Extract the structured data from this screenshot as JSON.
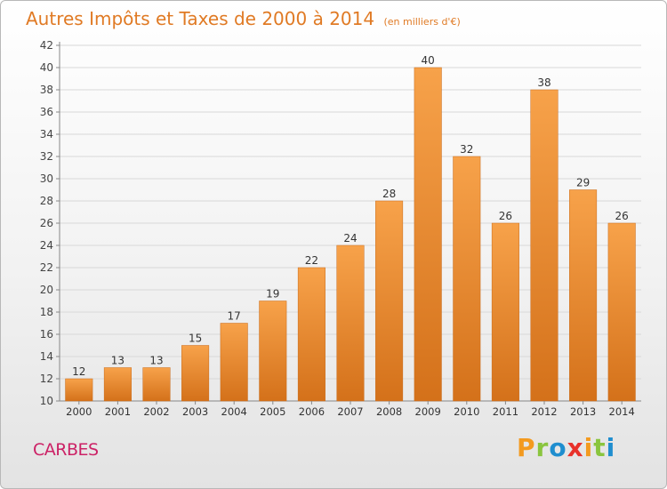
{
  "header": {
    "title": "Autres Impôts et Taxes de 2000 à 2014",
    "subtitle": "(en milliers d'€)"
  },
  "footer": {
    "place": "CARBES",
    "logo": [
      "P",
      "r",
      "o",
      "x",
      "i",
      "t",
      "i"
    ]
  },
  "colors": {
    "title": "#e07a24",
    "bar_top": "#f7a24a",
    "bar_bottom": "#d4711a",
    "place": "#cc2266",
    "logo": [
      "#f39a1f",
      "#8ac53e",
      "#1f8ecf",
      "#e8312a",
      "#f39a1f",
      "#8ac53e",
      "#1f8ecf"
    ]
  },
  "chart_data": {
    "type": "bar",
    "title": "Autres Impôts et Taxes de 2000 à 2014",
    "subtitle": "(en milliers d'€)",
    "xlabel": "",
    "ylabel": "",
    "categories": [
      "2000",
      "2001",
      "2002",
      "2003",
      "2004",
      "2005",
      "2006",
      "2007",
      "2008",
      "2009",
      "2010",
      "2011",
      "2012",
      "2013",
      "2014"
    ],
    "values": [
      12,
      13,
      13,
      15,
      17,
      19,
      22,
      24,
      28,
      40,
      32,
      26,
      38,
      29,
      26
    ],
    "ylim": [
      10,
      42
    ],
    "yticks": [
      10,
      12,
      14,
      16,
      18,
      20,
      22,
      24,
      26,
      28,
      30,
      32,
      34,
      36,
      38,
      40,
      42
    ],
    "grid": "horizontal",
    "data_labels": true,
    "legend": "none"
  }
}
